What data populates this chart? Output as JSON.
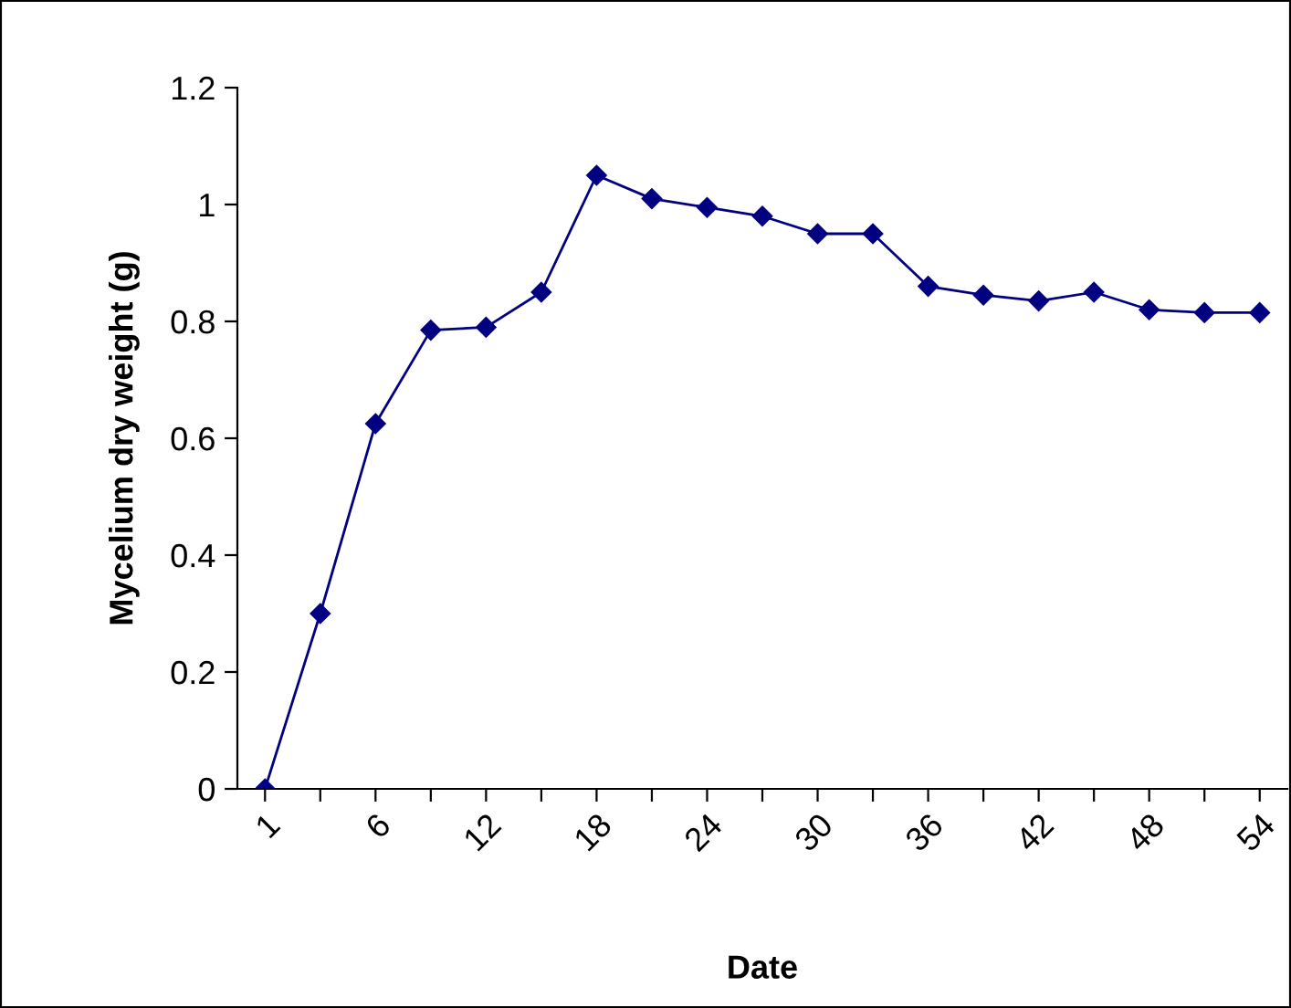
{
  "chart_data": {
    "type": "line",
    "xlabel": "Date",
    "ylabel": "Mycelium dry weight (g)",
    "categories": [
      "1",
      null,
      "6",
      null,
      "12",
      null,
      "18",
      null,
      "24",
      null,
      "30",
      null,
      "36",
      null,
      "42",
      null,
      "48",
      null,
      "54"
    ],
    "series": [
      {
        "color": "#000080",
        "values": [
          0,
          0.3,
          0.625,
          0.785,
          0.79,
          0.85,
          1.05,
          1.01,
          0.995,
          0.98,
          0.95,
          0.95,
          0.86,
          0.845,
          0.835,
          0.85,
          0.82,
          0.815,
          0.815
        ]
      }
    ],
    "ylim": [
      0,
      1.2
    ],
    "yticks": [
      0,
      0.2,
      0.4,
      0.6,
      0.8,
      1,
      1.2
    ],
    "grid": false,
    "legend": false,
    "marker": "diamond",
    "line_style": "solid"
  }
}
